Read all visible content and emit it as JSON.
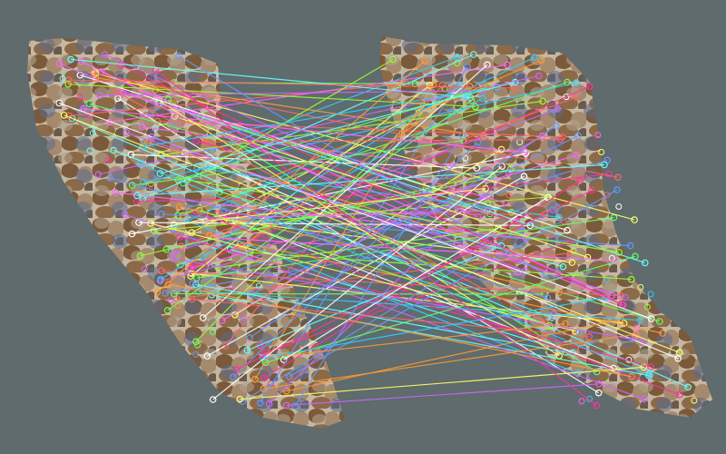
{
  "background_color": "#5f6b6d",
  "tissue_colors": {
    "fiber_dark": "#7a5a3a",
    "fiber_light": "#a58a6e",
    "fiber_blue": "#5a6a8a",
    "interstitial": "#c9bfae"
  },
  "match_colors": [
    "#ffff66",
    "#66ff66",
    "#ff66ff",
    "#6699ff",
    "#ff6666",
    "#66ffff",
    "#ffffff",
    "#ff9933",
    "#99ff33",
    "#cc66ff",
    "#33ccff",
    "#ff3399"
  ]
}
